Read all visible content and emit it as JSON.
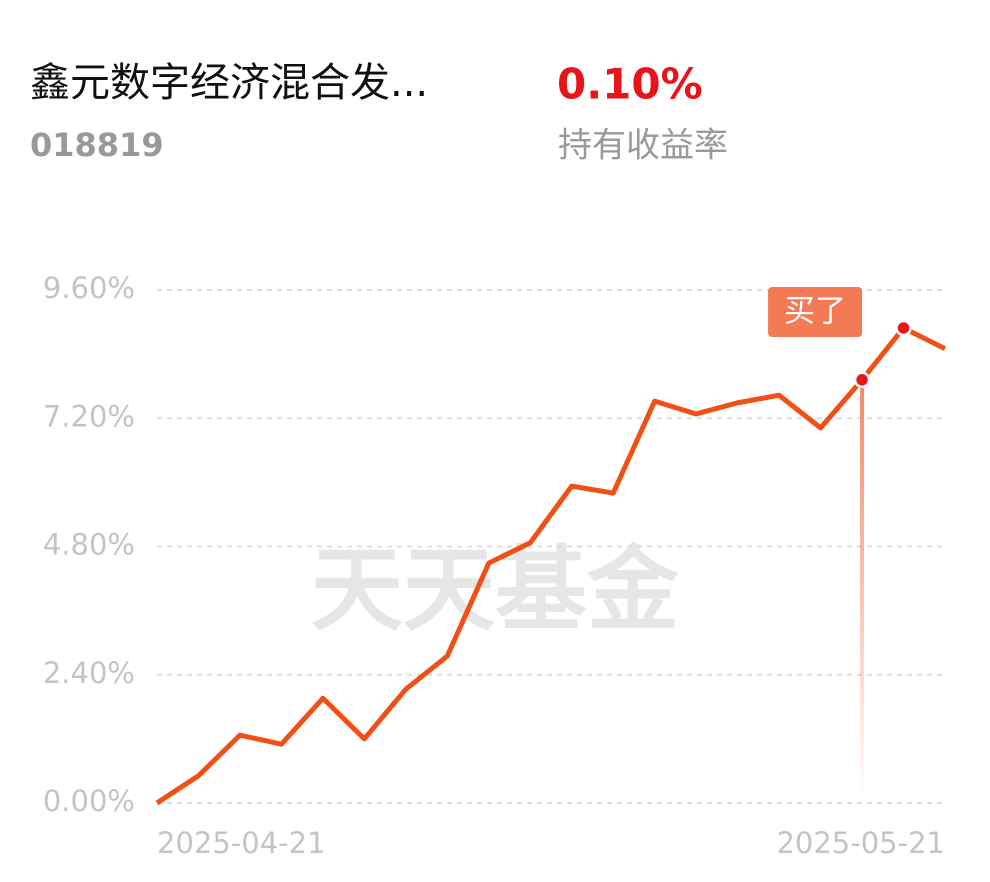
{
  "header": {
    "title": "鑫元数字经济混合发...",
    "code": "018819",
    "return_value": "0.10%",
    "return_label": "持有收益率"
  },
  "chart_data": {
    "type": "line",
    "categories": [
      "2025-04-21",
      null,
      null,
      null,
      null,
      null,
      null,
      null,
      null,
      null,
      null,
      null,
      null,
      null,
      null,
      null,
      null,
      null,
      null,
      "2025-05-21"
    ],
    "series": [
      {
        "color": "#f24f17",
        "values": [
          0,
          0.51,
          1.27,
          1.1,
          1.96,
          1.2,
          2.13,
          2.75,
          4.49,
          4.87,
          5.93,
          5.8,
          7.52,
          7.28,
          7.49,
          7.63,
          7.02,
          7.92,
          8.89,
          8.5
        ]
      }
    ],
    "ylim": [
      0,
      9.6
    ],
    "yticks": [
      {
        "value": 0,
        "label": "0.00%"
      },
      {
        "value": 2.4,
        "label": "2.40%"
      },
      {
        "value": 4.8,
        "label": "4.80%"
      },
      {
        "value": 7.2,
        "label": "7.20%"
      },
      {
        "value": 9.6,
        "label": "9.60%"
      }
    ],
    "grid": true,
    "annotation": {
      "text": "买了",
      "index": 17
    },
    "watermark": "天天基金"
  }
}
